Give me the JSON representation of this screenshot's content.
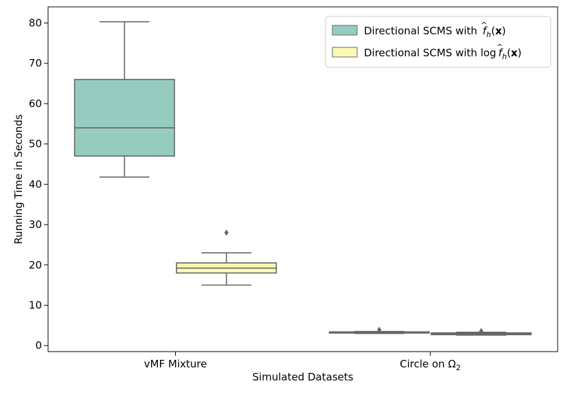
{
  "chart_data": {
    "type": "box",
    "xlabel": "Simulated Datasets",
    "ylabel": "Running Time in Seconds",
    "ylim": [
      -1.5,
      84
    ],
    "yticks": [
      0,
      10,
      20,
      30,
      40,
      50,
      60,
      70,
      80
    ],
    "grid": false,
    "legend_position": "top-right",
    "categories": [
      {
        "label_main": "vMF Mixture",
        "label_sub": ""
      },
      {
        "label_main": "Circle on Ω",
        "label_sub": "2"
      }
    ],
    "series": [
      {
        "name": "Directional SCMS with f̂_h(x)",
        "legend_text": "Directional SCMS with ",
        "legend_math": {
          "f": "f",
          "hat": "^",
          "sub": "h",
          "arg": "(x)"
        },
        "color": "#96cbc0",
        "boxes": [
          {
            "whisker_low": 41.8,
            "q1": 47.0,
            "median": 54.0,
            "q3": 66.0,
            "whisker_high": 80.3,
            "outliers": []
          },
          {
            "whisker_low": 3.0,
            "q1": 3.1,
            "median": 3.25,
            "q3": 3.4,
            "whisker_high": 3.5,
            "outliers": [
              3.9
            ]
          }
        ]
      },
      {
        "name": "Directional SCMS with log f̂_h(x)",
        "legend_text": "Directional SCMS with log",
        "legend_math": {
          "f": "f",
          "hat": "^",
          "sub": "h",
          "arg": "(x)"
        },
        "color": "#fafab4",
        "boxes": [
          {
            "whisker_low": 15.0,
            "q1": 18.0,
            "median": 19.2,
            "q3": 20.5,
            "whisker_high": 23.0,
            "outliers": [
              28.0
            ]
          },
          {
            "whisker_low": 2.6,
            "q1": 2.7,
            "median": 2.95,
            "q3": 3.15,
            "whisker_high": 3.3,
            "outliers": [
              3.6
            ]
          }
        ]
      }
    ],
    "box_edge_color": "#666666"
  }
}
